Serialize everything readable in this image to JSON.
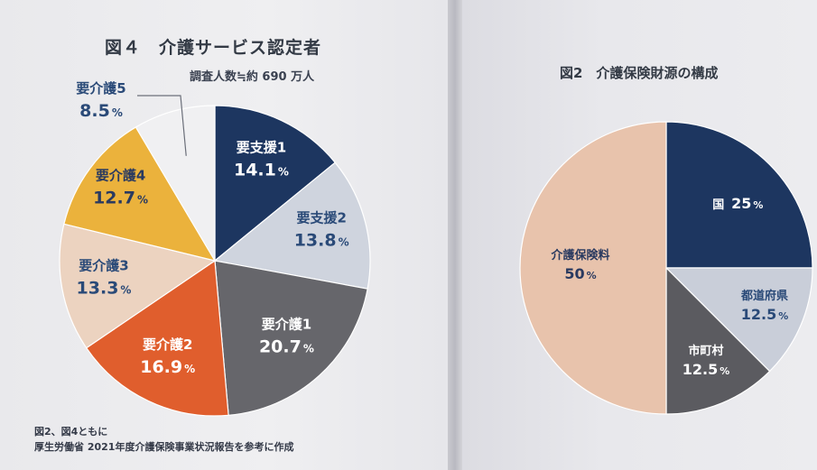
{
  "chart_data": [
    {
      "type": "pie",
      "title": "図４　介護サービス認定者",
      "subtitle": "調査人数≒約 690 万人",
      "unit": "%",
      "slices": [
        {
          "label": "要支援1",
          "value": 14.1,
          "color": "#1d3660",
          "text_color": "#ffffff"
        },
        {
          "label": "要支援2",
          "value": 13.8,
          "color": "#cfd4de",
          "text_color": "#2a4a78"
        },
        {
          "label": "要介護1",
          "value": 20.7,
          "color": "#66666b",
          "text_color": "#ffffff"
        },
        {
          "label": "要介護2",
          "value": 16.9,
          "color": "#e05e2d",
          "text_color": "#ffffff"
        },
        {
          "label": "要介護3",
          "value": 13.3,
          "color": "#ecd3c0",
          "text_color": "#2a4a78"
        },
        {
          "label": "要介護4",
          "value": 12.7,
          "color": "#ebb23c",
          "text_color": "#2a3a60"
        },
        {
          "label": "要介護5",
          "value": 8.5,
          "color": "#f0f0f2",
          "text_color": "#2a4a78"
        }
      ]
    },
    {
      "type": "pie",
      "title": "図2　介護保険財源の構成",
      "unit": "%",
      "slices": [
        {
          "label": "国",
          "value": 25,
          "color": "#1d3660",
          "text_color": "#ffffff"
        },
        {
          "label": "都道府県",
          "value": 12.5,
          "color": "#c9ced9",
          "text_color": "#2a4a78"
        },
        {
          "label": "市町村",
          "value": 12.5,
          "color": "#5b5b60",
          "text_color": "#ffffff"
        },
        {
          "label": "介護保険料",
          "value": 50,
          "color": "#e8c3ac",
          "text_color": "#2a3a60"
        }
      ]
    }
  ],
  "source_note": {
    "line1": "図2、図4ともに",
    "line2": "厚生労働省 2021年度介護保険事業状況報告を参考に作成"
  }
}
